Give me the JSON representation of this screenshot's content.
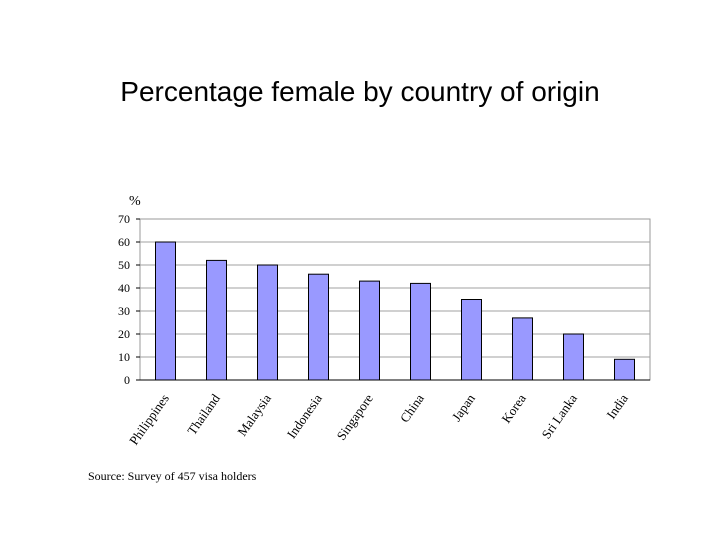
{
  "slide": {
    "title": "Percentage female by country of origin"
  },
  "chart_data": {
    "type": "bar",
    "unit_label": "%",
    "categories": [
      "Philippines",
      "Thailand",
      "Malaysia",
      "Indonesia",
      "Singapore",
      "China",
      "Japan",
      "Korea",
      "Sri Lanka",
      "India"
    ],
    "values": [
      60,
      52,
      50,
      46,
      43,
      42,
      35,
      27,
      20,
      9
    ],
    "ylim": [
      0,
      70
    ],
    "yticks": [
      0,
      10,
      20,
      30,
      40,
      50,
      60,
      70
    ],
    "grid": true,
    "bar_color": "#9999ff",
    "bar_border": "#000000",
    "source": "Source: Survey of 457 visa holders"
  }
}
